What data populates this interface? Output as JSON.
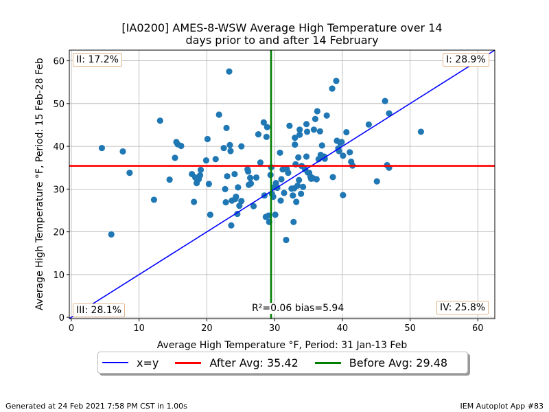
{
  "chart_data": {
    "type": "scatter",
    "title": "[IA0200] AMES-8-WSW Average High Temperature over 14",
    "subtitle": "days prior to and after 14 February",
    "xlabel": "Average High Temperature $^\\circ$F, Period: 31 Jan-13 Feb",
    "ylabel": "Average High Temperature $^\\circ$F, Period: 15 Feb-28 Feb",
    "xlabel_display": "Average High Temperature °F, Period: 31 Jan-13 Feb",
    "ylabel_display": "Average High Temperature °F, Period: 15 Feb-28 Feb",
    "xlim": [
      -0.3,
      62.5
    ],
    "ylim": [
      -0.3,
      62.5
    ],
    "xticks": [
      0,
      10,
      20,
      30,
      40,
      50,
      60
    ],
    "yticks": [
      0,
      10,
      20,
      30,
      40,
      50,
      60
    ],
    "grid": true,
    "point_color": "#1f77b4",
    "points": [
      [
        4.5,
        39.6
      ],
      [
        5.9,
        19.4
      ],
      [
        7.6,
        38.8
      ],
      [
        8.6,
        33.8
      ],
      [
        12.2,
        27.5
      ],
      [
        13.1,
        46.0
      ],
      [
        14.5,
        32.2
      ],
      [
        15.3,
        37.3
      ],
      [
        15.5,
        41.0
      ],
      [
        15.7,
        40.5
      ],
      [
        16.2,
        40.1
      ],
      [
        17.8,
        33.5
      ],
      [
        18.1,
        27.0
      ],
      [
        18.3,
        32.7
      ],
      [
        18.5,
        31.4
      ],
      [
        18.8,
        32.3
      ],
      [
        19.0,
        33.2
      ],
      [
        19.1,
        34.5
      ],
      [
        19.9,
        36.7
      ],
      [
        20.1,
        41.7
      ],
      [
        20.3,
        31.2
      ],
      [
        20.5,
        24.0
      ],
      [
        21.3,
        37.0
      ],
      [
        21.8,
        47.4
      ],
      [
        22.5,
        39.6
      ],
      [
        22.7,
        30.0
      ],
      [
        22.8,
        26.9
      ],
      [
        22.9,
        44.3
      ],
      [
        23.0,
        33.0
      ],
      [
        23.3,
        57.5
      ],
      [
        23.4,
        40.3
      ],
      [
        23.5,
        38.9
      ],
      [
        23.6,
        21.5
      ],
      [
        23.7,
        27.3
      ],
      [
        24.1,
        33.5
      ],
      [
        24.2,
        27.7
      ],
      [
        24.3,
        28.2
      ],
      [
        24.5,
        24.2
      ],
      [
        24.6,
        30.4
      ],
      [
        24.8,
        26.1
      ],
      [
        25.1,
        27.2
      ],
      [
        25.1,
        40.0
      ],
      [
        26.0,
        34.6
      ],
      [
        26.1,
        34.1
      ],
      [
        26.2,
        31.0
      ],
      [
        26.4,
        32.6
      ],
      [
        26.5,
        31.3
      ],
      [
        26.9,
        26.0
      ],
      [
        27.3,
        32.7
      ],
      [
        27.6,
        42.8
      ],
      [
        27.9,
        36.2
      ],
      [
        28.4,
        45.6
      ],
      [
        28.5,
        28.5
      ],
      [
        28.7,
        23.5
      ],
      [
        28.8,
        42.2
      ],
      [
        28.9,
        44.5
      ],
      [
        29.1,
        23.8
      ],
      [
        29.2,
        22.3
      ],
      [
        29.4,
        33.3
      ],
      [
        29.5,
        35.1
      ],
      [
        29.6,
        28.9
      ],
      [
        29.8,
        28.2
      ],
      [
        29.9,
        30.4
      ],
      [
        30.1,
        24.0
      ],
      [
        30.2,
        31.4
      ],
      [
        30.4,
        30.3
      ],
      [
        30.8,
        38.5
      ],
      [
        30.9,
        27.3
      ],
      [
        31.0,
        32.3
      ],
      [
        31.2,
        34.6
      ],
      [
        31.4,
        29.1
      ],
      [
        31.7,
        18.1
      ],
      [
        31.8,
        34.7
      ],
      [
        32.0,
        33.8
      ],
      [
        32.2,
        44.8
      ],
      [
        32.5,
        30.1
      ],
      [
        32.7,
        28.5
      ],
      [
        32.8,
        22.3
      ],
      [
        32.9,
        30.2
      ],
      [
        33.0,
        42.0
      ],
      [
        33.0,
        40.4
      ],
      [
        33.1,
        35.8
      ],
      [
        33.2,
        27.0
      ],
      [
        33.4,
        30.8
      ],
      [
        33.5,
        37.4
      ],
      [
        33.6,
        32.1
      ],
      [
        33.7,
        42.7
      ],
      [
        33.7,
        43.9
      ],
      [
        33.9,
        28.9
      ],
      [
        34.0,
        35.4
      ],
      [
        34.2,
        30.5
      ],
      [
        34.5,
        34.6
      ],
      [
        34.7,
        45.2
      ],
      [
        34.7,
        37.6
      ],
      [
        34.8,
        43.4
      ],
      [
        34.9,
        33.9
      ],
      [
        35.1,
        33.8
      ],
      [
        35.3,
        32.9
      ],
      [
        35.4,
        32.4
      ],
      [
        35.7,
        32.5
      ],
      [
        35.8,
        43.9
      ],
      [
        36.0,
        46.4
      ],
      [
        36.2,
        32.3
      ],
      [
        36.3,
        48.2
      ],
      [
        36.5,
        37.0
      ],
      [
        36.7,
        43.5
      ],
      [
        36.8,
        38.0
      ],
      [
        37.0,
        40.2
      ],
      [
        37.3,
        37.6
      ],
      [
        37.4,
        37.1
      ],
      [
        37.7,
        47.2
      ],
      [
        38.5,
        53.5
      ],
      [
        38.6,
        32.8
      ],
      [
        39.1,
        55.3
      ],
      [
        39.2,
        41.3
      ],
      [
        39.4,
        39.5
      ],
      [
        39.5,
        38.9
      ],
      [
        39.7,
        40.8
      ],
      [
        39.9,
        41.0
      ],
      [
        40.1,
        37.8
      ],
      [
        40.1,
        28.6
      ],
      [
        40.6,
        43.3
      ],
      [
        41.1,
        38.6
      ],
      [
        41.3,
        36.4
      ],
      [
        41.5,
        35.5
      ],
      [
        43.9,
        45.1
      ],
      [
        45.1,
        31.8
      ],
      [
        46.3,
        50.6
      ],
      [
        46.6,
        35.6
      ],
      [
        46.9,
        35.0
      ],
      [
        46.9,
        47.7
      ],
      [
        51.6,
        43.4
      ]
    ],
    "lines": [
      {
        "name": "x=y",
        "kind": "diagonal",
        "color": "#0000ff"
      },
      {
        "name": "After Avg: 35.42",
        "kind": "horizontal",
        "value": 35.42,
        "color": "#ff0000"
      },
      {
        "name": "Before Avg: 29.48",
        "kind": "vertical",
        "value": 29.48,
        "color": "#008000"
      }
    ],
    "annotations": {
      "q1": "I: 28.9%",
      "q2": "II: 17.2%",
      "q3": "III: 28.1%",
      "q4": "IV: 25.8%",
      "stat": "R²=0.06 bias=5.94"
    },
    "legend": {
      "placement": "bottom-center",
      "entries": [
        "x=y",
        "After Avg: 35.42",
        "Before Avg: 29.48"
      ]
    }
  },
  "footer": {
    "left": "Generated at 24 Feb 2021 7:58 PM CST in 1.00s",
    "right": "IEM Autoplot App #83"
  }
}
